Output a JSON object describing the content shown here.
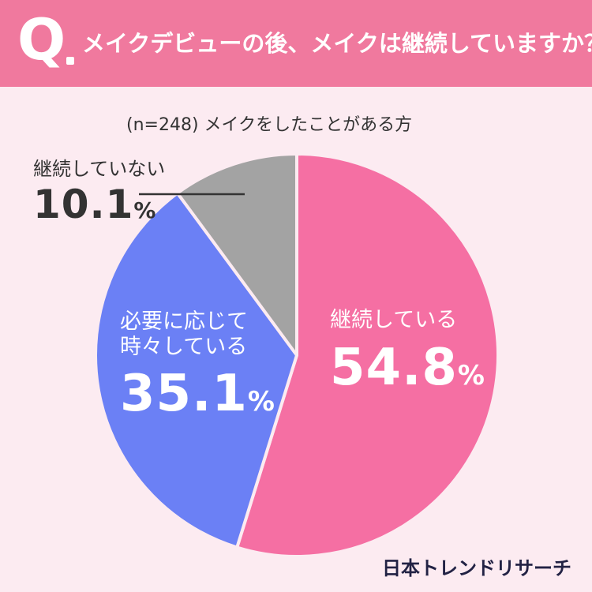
{
  "header": {
    "q_letter": "Q",
    "question": "メイクデビューの後、メイクは継続していますか？"
  },
  "sample_note": "(n=248) メイクをしたことがある方",
  "chart_data": {
    "type": "pie",
    "title": "メイクデビューの後、メイクは継続していますか？",
    "categories": [
      "継続している",
      "必要に応じて時々している",
      "継続していない"
    ],
    "values": [
      54.8,
      35.1,
      10.1
    ],
    "unit": "%",
    "colors": [
      "#f56fa3",
      "#6b80f5",
      "#a3a3a3"
    ],
    "start": "12 o'clock",
    "direction": "clockwise",
    "legend": "none"
  },
  "labels": {
    "s1_line1": "継続している",
    "s1_value": "54.8",
    "s2_line1": "必要に応じて",
    "s2_line2": "時々している",
    "s2_value": "35.1",
    "s3_line1": "継続していない",
    "s3_value": "10.1",
    "percent": "%"
  },
  "brand": "日本トレンドリサーチ"
}
